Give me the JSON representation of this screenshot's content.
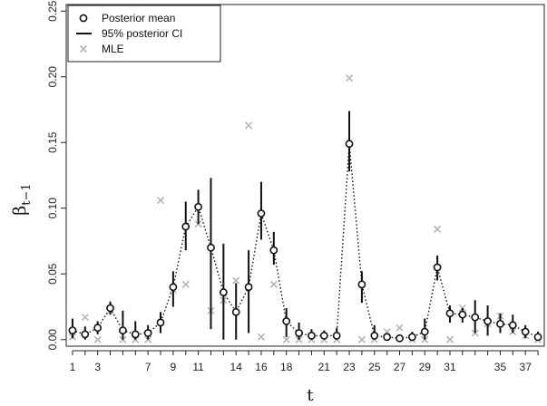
{
  "chart_data": {
    "type": "scatter",
    "title": "",
    "xlabel": "t",
    "ylabel": "β",
    "ylabel_sub": "t−1",
    "xlim": [
      0.5,
      38.5
    ],
    "ylim": [
      -0.005,
      0.255
    ],
    "x_ticks": [
      1,
      3,
      7,
      9,
      11,
      14,
      16,
      18,
      21,
      23,
      25,
      27,
      29,
      31,
      35,
      37
    ],
    "x_minor_ticks": [
      1,
      2,
      3,
      4,
      5,
      6,
      7,
      8,
      9,
      10,
      11,
      12,
      13,
      14,
      15,
      16,
      17,
      18,
      19,
      20,
      21,
      22,
      23,
      24,
      25,
      26,
      27,
      28,
      29,
      30,
      31,
      32,
      33,
      34,
      35,
      36,
      37,
      38
    ],
    "y_ticks": [
      0.0,
      0.05,
      0.1,
      0.15,
      0.2,
      0.25
    ],
    "y_tick_labels": [
      "0.00",
      "0.05",
      "0.10",
      "0.15",
      "0.20",
      "0.25"
    ],
    "grid": false,
    "legend_position": "top-left",
    "legend": [
      {
        "label": "Posterior mean",
        "symbol": "circle"
      },
      {
        "label": "95% posterior CI",
        "symbol": "line"
      },
      {
        "label": "MLE",
        "symbol": "cross"
      }
    ],
    "colors": {
      "mean": "#111111",
      "ci": "#111111",
      "mle": "#b5b5b5",
      "curve": "#111111"
    },
    "series": [
      {
        "name": "Posterior mean",
        "x": [
          1,
          2,
          3,
          4,
          5,
          6,
          7,
          8,
          9,
          10,
          11,
          12,
          13,
          14,
          15,
          16,
          17,
          18,
          19,
          20,
          21,
          22,
          23,
          24,
          25,
          26,
          27,
          28,
          29,
          30,
          31,
          32,
          33,
          34,
          35,
          36,
          37,
          38
        ],
        "y": [
          0.007,
          0.004,
          0.009,
          0.024,
          0.007,
          0.004,
          0.005,
          0.013,
          0.04,
          0.086,
          0.101,
          0.07,
          0.036,
          0.021,
          0.04,
          0.096,
          0.068,
          0.014,
          0.005,
          0.003,
          0.003,
          0.003,
          0.149,
          0.042,
          0.003,
          0.002,
          0.001,
          0.002,
          0.006,
          0.055,
          0.02,
          0.019,
          0.017,
          0.014,
          0.012,
          0.011,
          0.006,
          0.002
        ]
      },
      {
        "name": "95% posterior CI",
        "lower": [
          0.001,
          0.0,
          0.004,
          0.019,
          0.0,
          0.0,
          0.0,
          0.005,
          0.025,
          0.068,
          0.088,
          0.008,
          0.0,
          0.0,
          0.005,
          0.076,
          0.057,
          0.002,
          0.0,
          0.0,
          0.0,
          0.0,
          0.128,
          0.028,
          0.0,
          0.0,
          0.0,
          0.0,
          0.0,
          0.045,
          0.013,
          0.013,
          0.005,
          0.003,
          0.005,
          0.005,
          0.001,
          0.0
        ],
        "upper": [
          0.016,
          0.01,
          0.014,
          0.029,
          0.022,
          0.014,
          0.011,
          0.021,
          0.052,
          0.105,
          0.114,
          0.123,
          0.073,
          0.043,
          0.068,
          0.12,
          0.082,
          0.024,
          0.013,
          0.008,
          0.007,
          0.009,
          0.174,
          0.052,
          0.011,
          0.005,
          0.004,
          0.006,
          0.016,
          0.064,
          0.026,
          0.024,
          0.03,
          0.026,
          0.02,
          0.019,
          0.011,
          0.006
        ]
      },
      {
        "name": "MLE",
        "x": [
          1,
          2,
          3,
          4,
          5,
          6,
          7,
          8,
          9,
          10,
          11,
          12,
          13,
          14,
          15,
          16,
          17,
          18,
          19,
          20,
          21,
          22,
          23,
          24,
          25,
          26,
          27,
          28,
          29,
          30,
          31,
          32,
          33,
          34,
          35,
          36,
          37,
          38
        ],
        "y": [
          0.002,
          0.017,
          0.0,
          0.022,
          0.0,
          0.0,
          0.0,
          0.106,
          0.038,
          0.042,
          0.088,
          0.022,
          0.03,
          0.045,
          0.163,
          0.002,
          0.042,
          0.0,
          0.0,
          0.0,
          0.0,
          0.0,
          0.199,
          0.0,
          0.0,
          0.006,
          0.009,
          0.0,
          0.0,
          0.084,
          0.0,
          0.024,
          0.005,
          0.012,
          0.018,
          0.006,
          0.003,
          0.0
        ]
      }
    ]
  }
}
